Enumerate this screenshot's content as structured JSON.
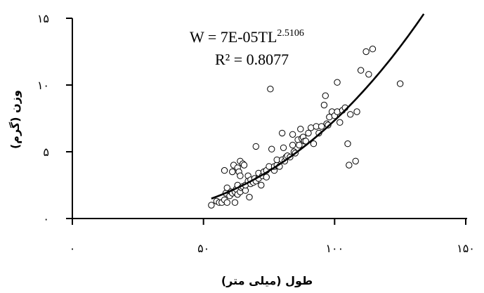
{
  "chart_data": {
    "type": "scatter",
    "xlabel": "طول (میلی متر)",
    "ylabel": "وزن (گرم)",
    "xlim": [
      0,
      150
    ],
    "ylim": [
      0,
      15
    ],
    "x_ticks": [
      0,
      50,
      100,
      150
    ],
    "x_tick_labels": [
      "۰",
      "۵۰",
      "۱۰۰",
      "۱۵۰"
    ],
    "y_ticks": [
      0,
      5,
      10,
      15
    ],
    "y_tick_labels": [
      "۰",
      "۵",
      "۱۰",
      "۱۵"
    ],
    "grid": false,
    "equation": {
      "line1_main": "W = 7E-05TL",
      "line1_exp": "2.5106",
      "line2": "R² = 0.8077"
    },
    "trendline": {
      "type": "power",
      "a": 7e-05,
      "b": 2.5106,
      "x_range": [
        53,
        134
      ]
    },
    "points": [
      [
        53,
        1.0
      ],
      [
        55,
        1.3
      ],
      [
        56,
        1.2
      ],
      [
        57,
        1.2
      ],
      [
        58,
        1.4
      ],
      [
        58,
        3.6
      ],
      [
        58.5,
        1.9
      ],
      [
        59,
        2.3
      ],
      [
        59,
        1.2
      ],
      [
        60,
        1.7
      ],
      [
        60.5,
        2.0
      ],
      [
        61,
        1.9
      ],
      [
        61,
        3.5
      ],
      [
        61.5,
        4.0
      ],
      [
        62,
        2.0
      ],
      [
        62,
        1.2
      ],
      [
        62.5,
        2.2
      ],
      [
        63,
        1.8
      ],
      [
        63,
        2.5
      ],
      [
        63,
        3.8
      ],
      [
        63.5,
        3.5
      ],
      [
        64,
        4.3
      ],
      [
        64,
        3.2
      ],
      [
        64,
        2.0
      ],
      [
        64.5,
        2.3
      ],
      [
        65,
        2.4
      ],
      [
        65,
        4.1
      ],
      [
        65.5,
        4.0
      ],
      [
        66,
        2.1
      ],
      [
        66,
        2.5
      ],
      [
        67,
        3.2
      ],
      [
        67,
        2.8
      ],
      [
        67.5,
        1.6
      ],
      [
        68,
        2.6
      ],
      [
        68,
        2.9
      ],
      [
        69,
        2.7
      ],
      [
        69.5,
        3.0
      ],
      [
        70,
        5.4
      ],
      [
        70,
        2.8
      ],
      [
        71,
        3.0
      ],
      [
        71,
        3.4
      ],
      [
        72,
        2.5
      ],
      [
        72.5,
        3.2
      ],
      [
        73,
        3.5
      ],
      [
        74,
        3.6
      ],
      [
        74,
        3.1
      ],
      [
        75,
        3.9
      ],
      [
        75.5,
        9.7
      ],
      [
        76,
        5.2
      ],
      [
        77,
        3.6
      ],
      [
        77,
        3.9
      ],
      [
        78,
        4.0
      ],
      [
        78,
        4.4
      ],
      [
        79,
        3.9
      ],
      [
        80,
        4.4
      ],
      [
        80,
        6.4
      ],
      [
        80.5,
        5.3
      ],
      [
        81,
        4.3
      ],
      [
        81.5,
        4.6
      ],
      [
        82,
        4.7
      ],
      [
        83,
        4.6
      ],
      [
        84,
        5.5
      ],
      [
        84,
        6.3
      ],
      [
        84.5,
        5.0
      ],
      [
        85,
        4.9
      ],
      [
        86,
        5.9
      ],
      [
        86.5,
        5.5
      ],
      [
        87,
        6.7
      ],
      [
        87.5,
        6.0
      ],
      [
        88,
        6.1
      ],
      [
        88.5,
        5.8
      ],
      [
        89,
        5.8
      ],
      [
        90,
        6.4
      ],
      [
        91,
        6.8
      ],
      [
        92,
        5.6
      ],
      [
        93,
        6.9
      ],
      [
        94,
        6.4
      ],
      [
        95,
        6.9
      ],
      [
        96,
        8.5
      ],
      [
        96.5,
        9.2
      ],
      [
        97,
        7.1
      ],
      [
        97.5,
        7.0
      ],
      [
        98,
        7.6
      ],
      [
        99,
        8.0
      ],
      [
        100,
        7.7
      ],
      [
        101,
        10.2
      ],
      [
        101,
        8.0
      ],
      [
        102,
        7.2
      ],
      [
        103,
        8.1
      ],
      [
        104,
        8.3
      ],
      [
        105,
        5.6
      ],
      [
        105.5,
        4.0
      ],
      [
        106,
        7.8
      ],
      [
        108,
        4.3
      ],
      [
        108.5,
        8.0
      ],
      [
        110,
        11.1
      ],
      [
        112,
        12.5
      ],
      [
        113,
        10.8
      ],
      [
        114.5,
        12.7
      ],
      [
        125,
        10.1
      ]
    ]
  }
}
